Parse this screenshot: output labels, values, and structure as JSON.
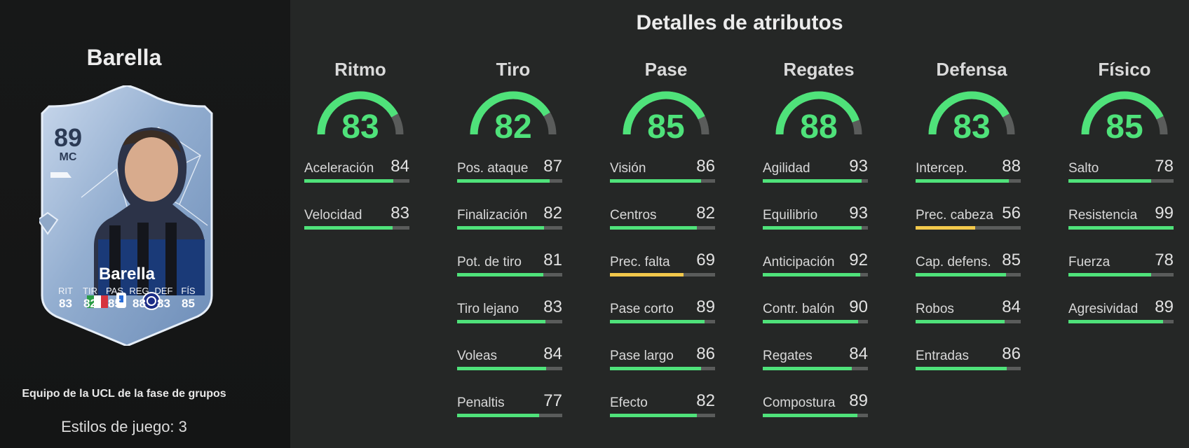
{
  "player": {
    "title": "Barella",
    "card": {
      "rating": "89",
      "position": "MC",
      "name": "Barella",
      "stat_labels": [
        "RIT",
        "TIR",
        "PAS",
        "REG",
        "DEF",
        "FÍS"
      ],
      "stat_values": [
        "83",
        "82",
        "85",
        "88",
        "83",
        "85"
      ]
    },
    "promo": "Equipo de la UCL de la fase de grupos",
    "playstyles": "Estilos de juego: 3"
  },
  "heading": "Detalles de atributos",
  "colors": {
    "high": "#4fe27a",
    "mid": "#f2c84b",
    "gauge_track": "#5a5c5b"
  },
  "categories": [
    {
      "name": "Ritmo",
      "value": 83,
      "stats": [
        {
          "name": "Aceleración",
          "value": 84
        },
        {
          "name": "Velocidad",
          "value": 83
        }
      ]
    },
    {
      "name": "Tiro",
      "value": 82,
      "stats": [
        {
          "name": "Pos. ataque",
          "value": 87
        },
        {
          "name": "Finalización",
          "value": 82
        },
        {
          "name": "Pot. de tiro",
          "value": 81
        },
        {
          "name": "Tiro lejano",
          "value": 83
        },
        {
          "name": "Voleas",
          "value": 84
        },
        {
          "name": "Penaltis",
          "value": 77
        }
      ]
    },
    {
      "name": "Pase",
      "value": 85,
      "stats": [
        {
          "name": "Visión",
          "value": 86
        },
        {
          "name": "Centros",
          "value": 82
        },
        {
          "name": "Prec. falta",
          "value": 69
        },
        {
          "name": "Pase corto",
          "value": 89
        },
        {
          "name": "Pase largo",
          "value": 86
        },
        {
          "name": "Efecto",
          "value": 82
        }
      ]
    },
    {
      "name": "Regates",
      "value": 88,
      "stats": [
        {
          "name": "Agilidad",
          "value": 93
        },
        {
          "name": "Equilibrio",
          "value": 93
        },
        {
          "name": "Anticipación",
          "value": 92
        },
        {
          "name": "Contr. balón",
          "value": 90
        },
        {
          "name": "Regates",
          "value": 84
        },
        {
          "name": "Compostura",
          "value": 89
        }
      ]
    },
    {
      "name": "Defensa",
      "value": 83,
      "stats": [
        {
          "name": "Intercep.",
          "value": 88
        },
        {
          "name": "Prec. cabeza",
          "value": 56
        },
        {
          "name": "Cap. defens.",
          "value": 85
        },
        {
          "name": "Robos",
          "value": 84
        },
        {
          "name": "Entradas",
          "value": 86
        }
      ]
    },
    {
      "name": "Físico",
      "value": 85,
      "stats": [
        {
          "name": "Salto",
          "value": 78
        },
        {
          "name": "Resistencia",
          "value": 99
        },
        {
          "name": "Fuerza",
          "value": 78
        },
        {
          "name": "Agresividad",
          "value": 89
        }
      ]
    }
  ]
}
